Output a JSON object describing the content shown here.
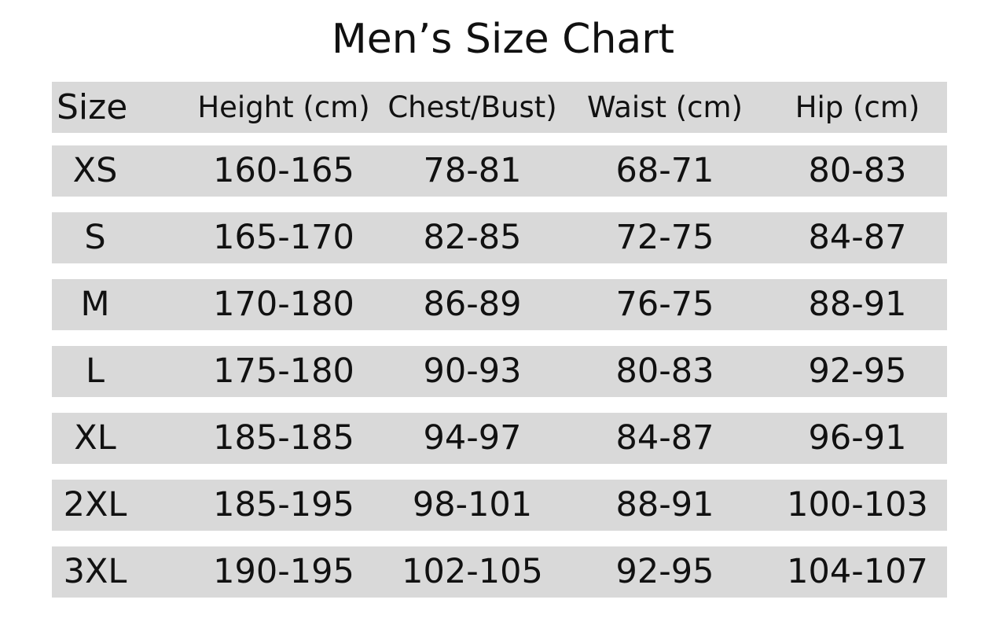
{
  "title": "Men’s Size Chart",
  "headers": [
    "Size",
    "Height (cm)",
    "Chest/Bust)",
    "Waist (cm)",
    "Hip (cm)"
  ],
  "rows": [
    [
      "XS",
      "160-165",
      "78-81",
      "68-71",
      "80-83"
    ],
    [
      "S",
      "165-170",
      "82-85",
      "72-75",
      "84-87"
    ],
    [
      "M",
      "170-180",
      "86-89",
      "76-75",
      "88-91"
    ],
    [
      "L",
      "175-180",
      "90-93",
      "80-83",
      "92-95"
    ],
    [
      "XL",
      "185-185",
      "94-97",
      "84-87",
      "96-91"
    ],
    [
      "2XL",
      "185-195",
      "98-101",
      "88-91",
      "100-103"
    ],
    [
      "3XL",
      "190-195",
      "102-105",
      "92-95",
      "104-107"
    ]
  ],
  "colors": {
    "band": "#d9d9d9",
    "text": "#111111",
    "background": "#ffffff"
  }
}
